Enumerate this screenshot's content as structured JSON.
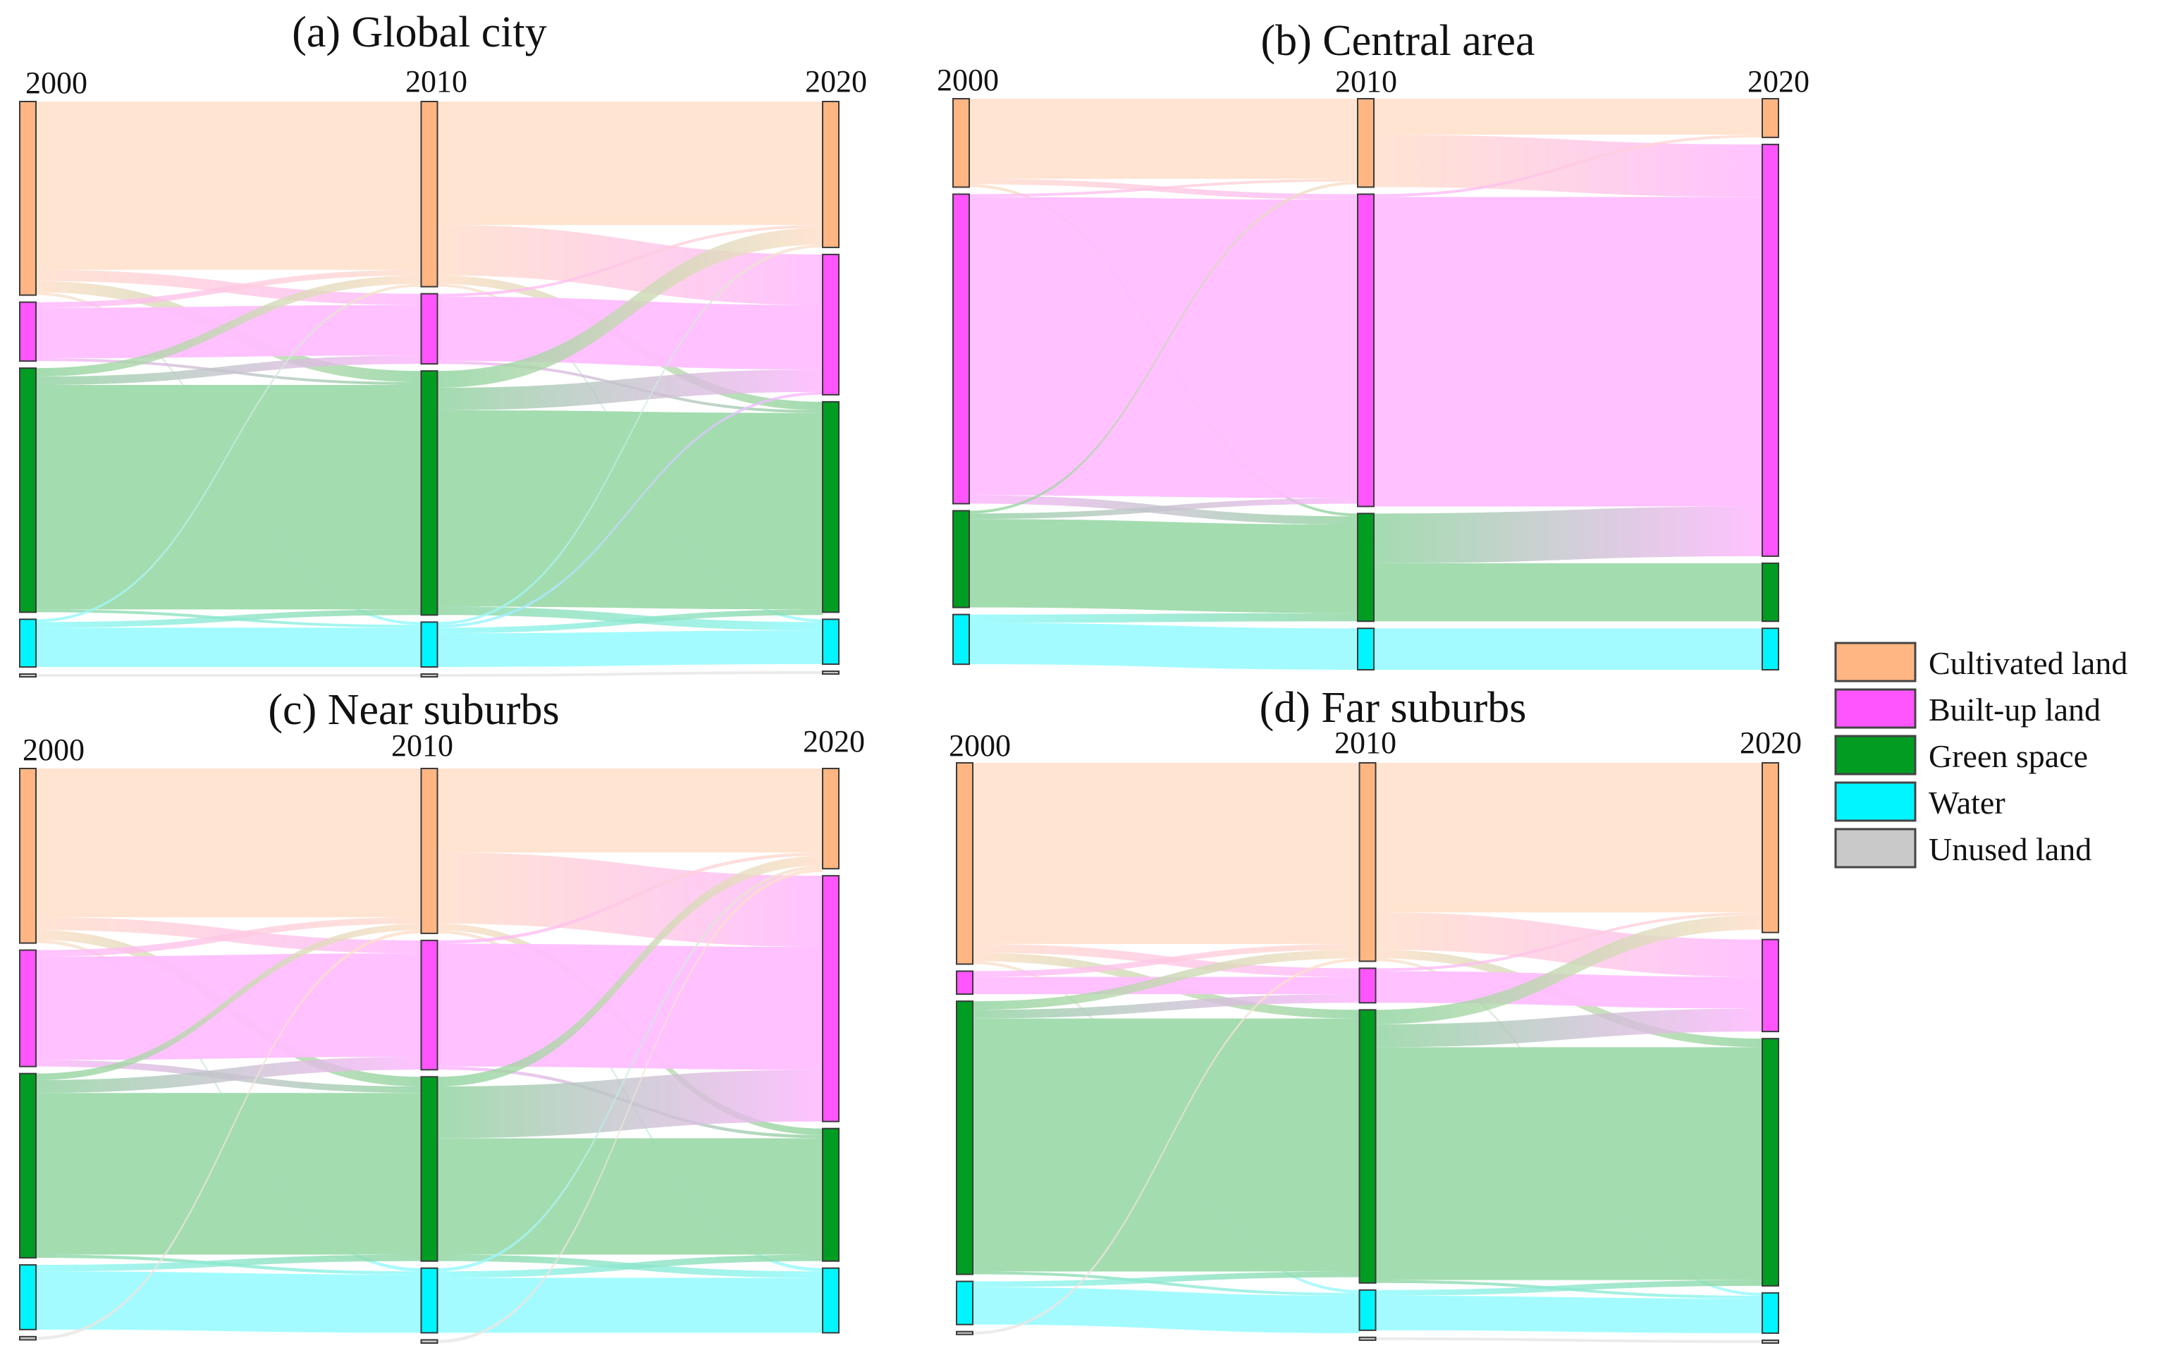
{
  "colors": {
    "Cultivated land": "#ffb682",
    "Built-up land": "#ff55ff",
    "Green space": "#009d22",
    "Water": "#00f5ff",
    "Unused land": "#c9c9c9"
  },
  "legend": {
    "items": [
      {
        "label": "Cultivated land",
        "icon": "swatch"
      },
      {
        "label": "Built-up land",
        "icon": "swatch"
      },
      {
        "label": "Green space",
        "icon": "swatch"
      },
      {
        "label": "Water",
        "icon": "swatch"
      },
      {
        "label": "Unused land",
        "icon": "swatch"
      }
    ]
  },
  "chart_data": [
    {
      "type": "sankey",
      "title": "(a) Global city",
      "years": [
        "2000",
        "2010",
        "2020"
      ],
      "nodes": {
        "2000": {
          "Cultivated land": 34.5,
          "Built-up land": 10.5,
          "Green space": 43.5,
          "Water": 8.5,
          "Unused land": 0.5
        },
        "2010": {
          "Cultivated land": 33.0,
          "Built-up land": 12.5,
          "Green space": 43.5,
          "Water": 8.0,
          "Unused land": 0.5
        },
        "2020": {
          "Cultivated land": 26.0,
          "Built-up land": 25.0,
          "Green space": 37.5,
          "Water": 8.0,
          "Unused land": 0.5
        }
      },
      "flows": [
        {
          "period": 0,
          "from": "Cultivated land",
          "to": "Cultivated land",
          "value": 30.0
        },
        {
          "period": 0,
          "from": "Cultivated land",
          "to": "Built-up land",
          "value": 2.0
        },
        {
          "period": 0,
          "from": "Cultivated land",
          "to": "Green space",
          "value": 2.0
        },
        {
          "period": 0,
          "from": "Cultivated land",
          "to": "Water",
          "value": 0.5
        },
        {
          "period": 0,
          "from": "Built-up land",
          "to": "Built-up land",
          "value": 9.0
        },
        {
          "period": 0,
          "from": "Built-up land",
          "to": "Cultivated land",
          "value": 1.0
        },
        {
          "period": 0,
          "from": "Built-up land",
          "to": "Green space",
          "value": 0.5
        },
        {
          "period": 0,
          "from": "Green space",
          "to": "Green space",
          "value": 40.0
        },
        {
          "period": 0,
          "from": "Green space",
          "to": "Cultivated land",
          "value": 1.5
        },
        {
          "period": 0,
          "from": "Green space",
          "to": "Built-up land",
          "value": 1.5
        },
        {
          "period": 0,
          "from": "Green space",
          "to": "Water",
          "value": 0.5
        },
        {
          "period": 0,
          "from": "Water",
          "to": "Water",
          "value": 7.0
        },
        {
          "period": 0,
          "from": "Water",
          "to": "Green space",
          "value": 1.0
        },
        {
          "period": 0,
          "from": "Water",
          "to": "Cultivated land",
          "value": 0.5
        },
        {
          "period": 0,
          "from": "Unused land",
          "to": "Unused land",
          "value": 0.5
        },
        {
          "period": 1,
          "from": "Cultivated land",
          "to": "Cultivated land",
          "value": 22.0
        },
        {
          "period": 1,
          "from": "Cultivated land",
          "to": "Built-up land",
          "value": 9.0
        },
        {
          "period": 1,
          "from": "Cultivated land",
          "to": "Green space",
          "value": 1.5
        },
        {
          "period": 1,
          "from": "Cultivated land",
          "to": "Water",
          "value": 0.5
        },
        {
          "period": 1,
          "from": "Built-up land",
          "to": "Built-up land",
          "value": 11.5
        },
        {
          "period": 1,
          "from": "Built-up land",
          "to": "Cultivated land",
          "value": 0.5
        },
        {
          "period": 1,
          "from": "Built-up land",
          "to": "Green space",
          "value": 0.5
        },
        {
          "period": 1,
          "from": "Green space",
          "to": "Green space",
          "value": 35.0
        },
        {
          "period": 1,
          "from": "Green space",
          "to": "Built-up land",
          "value": 4.0
        },
        {
          "period": 1,
          "from": "Green space",
          "to": "Cultivated land",
          "value": 3.0
        },
        {
          "period": 1,
          "from": "Green space",
          "to": "Water",
          "value": 1.5
        },
        {
          "period": 1,
          "from": "Water",
          "to": "Water",
          "value": 6.0
        },
        {
          "period": 1,
          "from": "Water",
          "to": "Green space",
          "value": 1.0
        },
        {
          "period": 1,
          "from": "Water",
          "to": "Built-up land",
          "value": 0.5
        },
        {
          "period": 1,
          "from": "Water",
          "to": "Cultivated land",
          "value": 0.5
        },
        {
          "period": 1,
          "from": "Unused land",
          "to": "Unused land",
          "value": 0.5
        }
      ]
    },
    {
      "type": "sankey",
      "title": "(b) Central area",
      "years": [
        "2000",
        "2010",
        "2020"
      ],
      "nodes": {
        "2000": {
          "Cultivated land": 16.0,
          "Built-up land": 56.0,
          "Green space": 17.5,
          "Water": 9.0
        },
        "2010": {
          "Cultivated land": 16.0,
          "Built-up land": 56.5,
          "Green space": 19.5,
          "Water": 7.5
        },
        "2020": {
          "Cultivated land": 7.0,
          "Built-up land": 74.5,
          "Green space": 10.5,
          "Water": 7.5
        }
      },
      "flows": [
        {
          "period": 0,
          "from": "Cultivated land",
          "to": "Cultivated land",
          "value": 14.5
        },
        {
          "period": 0,
          "from": "Cultivated land",
          "to": "Built-up land",
          "value": 1.0
        },
        {
          "period": 0,
          "from": "Cultivated land",
          "to": "Green space",
          "value": 0.5
        },
        {
          "period": 0,
          "from": "Built-up land",
          "to": "Built-up land",
          "value": 54.0
        },
        {
          "period": 0,
          "from": "Built-up land",
          "to": "Green space",
          "value": 1.5
        },
        {
          "period": 0,
          "from": "Built-up land",
          "to": "Cultivated land",
          "value": 0.5
        },
        {
          "period": 0,
          "from": "Green space",
          "to": "Green space",
          "value": 16.0
        },
        {
          "period": 0,
          "from": "Green space",
          "to": "Built-up land",
          "value": 1.0
        },
        {
          "period": 0,
          "from": "Green space",
          "to": "Cultivated land",
          "value": 0.5
        },
        {
          "period": 0,
          "from": "Water",
          "to": "Water",
          "value": 7.5
        },
        {
          "period": 0,
          "from": "Water",
          "to": "Green space",
          "value": 1.5
        },
        {
          "period": 1,
          "from": "Cultivated land",
          "to": "Cultivated land",
          "value": 6.5
        },
        {
          "period": 1,
          "from": "Cultivated land",
          "to": "Built-up land",
          "value": 9.5
        },
        {
          "period": 1,
          "from": "Built-up land",
          "to": "Built-up land",
          "value": 56.0
        },
        {
          "period": 1,
          "from": "Built-up land",
          "to": "Cultivated land",
          "value": 0.5
        },
        {
          "period": 1,
          "from": "Green space",
          "to": "Built-up land",
          "value": 9.0
        },
        {
          "period": 1,
          "from": "Green space",
          "to": "Green space",
          "value": 10.5
        },
        {
          "period": 1,
          "from": "Water",
          "to": "Water",
          "value": 7.5
        }
      ]
    },
    {
      "type": "sankey",
      "title": "(c) Near suburbs",
      "years": [
        "2000",
        "2010",
        "2020"
      ],
      "nodes": {
        "2000": {
          "Cultivated land": 27.0,
          "Built-up land": 18.0,
          "Green space": 28.5,
          "Water": 10.0,
          "Unused land": 0.5
        },
        "2010": {
          "Cultivated land": 25.5,
          "Built-up land": 20.0,
          "Green space": 28.5,
          "Water": 10.0,
          "Unused land": 0.5
        },
        "2020": {
          "Cultivated land": 15.5,
          "Built-up land": 38.0,
          "Green space": 20.5,
          "Water": 10.0
        }
      },
      "flows": [
        {
          "period": 0,
          "from": "Cultivated land",
          "to": "Cultivated land",
          "value": 23.0
        },
        {
          "period": 0,
          "from": "Cultivated land",
          "to": "Built-up land",
          "value": 2.0
        },
        {
          "period": 0,
          "from": "Cultivated land",
          "to": "Green space",
          "value": 1.5
        },
        {
          "period": 0,
          "from": "Cultivated land",
          "to": "Water",
          "value": 0.5
        },
        {
          "period": 0,
          "from": "Built-up land",
          "to": "Built-up land",
          "value": 16.0
        },
        {
          "period": 0,
          "from": "Built-up land",
          "to": "Cultivated land",
          "value": 1.0
        },
        {
          "period": 0,
          "from": "Built-up land",
          "to": "Green space",
          "value": 1.0
        },
        {
          "period": 0,
          "from": "Green space",
          "to": "Green space",
          "value": 25.0
        },
        {
          "period": 0,
          "from": "Green space",
          "to": "Built-up land",
          "value": 2.0
        },
        {
          "period": 0,
          "from": "Green space",
          "to": "Cultivated land",
          "value": 1.0
        },
        {
          "period": 0,
          "from": "Green space",
          "to": "Water",
          "value": 0.5
        },
        {
          "period": 0,
          "from": "Water",
          "to": "Water",
          "value": 9.0
        },
        {
          "period": 0,
          "from": "Water",
          "to": "Green space",
          "value": 1.0
        },
        {
          "period": 0,
          "from": "Unused land",
          "to": "Cultivated land",
          "value": 0.5
        },
        {
          "period": 1,
          "from": "Cultivated land",
          "to": "Cultivated land",
          "value": 13.0
        },
        {
          "period": 1,
          "from": "Cultivated land",
          "to": "Built-up land",
          "value": 11.0
        },
        {
          "period": 1,
          "from": "Cultivated land",
          "to": "Green space",
          "value": 1.0
        },
        {
          "period": 1,
          "from": "Cultivated land",
          "to": "Water",
          "value": 0.5
        },
        {
          "period": 1,
          "from": "Built-up land",
          "to": "Built-up land",
          "value": 19.0
        },
        {
          "period": 1,
          "from": "Built-up land",
          "to": "Cultivated land",
          "value": 0.5
        },
        {
          "period": 1,
          "from": "Built-up land",
          "to": "Green space",
          "value": 0.5
        },
        {
          "period": 1,
          "from": "Green space",
          "to": "Green space",
          "value": 18.0
        },
        {
          "period": 1,
          "from": "Green space",
          "to": "Built-up land",
          "value": 8.0
        },
        {
          "period": 1,
          "from": "Green space",
          "to": "Cultivated land",
          "value": 1.5
        },
        {
          "period": 1,
          "from": "Green space",
          "to": "Water",
          "value": 1.0
        },
        {
          "period": 1,
          "from": "Water",
          "to": "Water",
          "value": 8.5
        },
        {
          "period": 1,
          "from": "Water",
          "to": "Green space",
          "value": 1.0
        },
        {
          "period": 1,
          "from": "Water",
          "to": "Cultivated land",
          "value": 0.5
        },
        {
          "period": 1,
          "from": "Unused land",
          "to": "Cultivated land",
          "value": 0.5
        }
      ]
    },
    {
      "type": "sankey",
      "title": "(d) Far suburbs",
      "years": [
        "2000",
        "2010",
        "2020"
      ],
      "nodes": {
        "2000": {
          "Cultivated land": 35.0,
          "Built-up land": 4.0,
          "Green space": 47.5,
          "Water": 7.5,
          "Unused land": 0.5
        },
        "2010": {
          "Cultivated land": 34.5,
          "Built-up land": 6.0,
          "Green space": 47.5,
          "Water": 7.0,
          "Unused land": 0.5
        },
        "2020": {
          "Cultivated land": 29.5,
          "Built-up land": 16.0,
          "Green space": 43.0,
          "Water": 7.0,
          "Unused land": 0.5
        }
      },
      "flows": [
        {
          "period": 0,
          "from": "Cultivated land",
          "to": "Cultivated land",
          "value": 31.5
        },
        {
          "period": 0,
          "from": "Cultivated land",
          "to": "Built-up land",
          "value": 1.5
        },
        {
          "period": 0,
          "from": "Cultivated land",
          "to": "Green space",
          "value": 1.5
        },
        {
          "period": 0,
          "from": "Cultivated land",
          "to": "Water",
          "value": 0.5
        },
        {
          "period": 0,
          "from": "Built-up land",
          "to": "Built-up land",
          "value": 3.0
        },
        {
          "period": 0,
          "from": "Built-up land",
          "to": "Cultivated land",
          "value": 1.0
        },
        {
          "period": 0,
          "from": "Green space",
          "to": "Green space",
          "value": 44.0
        },
        {
          "period": 0,
          "from": "Green space",
          "to": "Cultivated land",
          "value": 1.5
        },
        {
          "period": 0,
          "from": "Green space",
          "to": "Built-up land",
          "value": 1.5
        },
        {
          "period": 0,
          "from": "Green space",
          "to": "Water",
          "value": 0.5
        },
        {
          "period": 0,
          "from": "Water",
          "to": "Water",
          "value": 6.5
        },
        {
          "period": 0,
          "from": "Water",
          "to": "Green space",
          "value": 1.0
        },
        {
          "period": 0,
          "from": "Unused land",
          "to": "Cultivated land",
          "value": 0.5
        },
        {
          "period": 1,
          "from": "Cultivated land",
          "to": "Cultivated land",
          "value": 26.0
        },
        {
          "period": 1,
          "from": "Cultivated land",
          "to": "Built-up land",
          "value": 6.5
        },
        {
          "period": 1,
          "from": "Cultivated land",
          "to": "Green space",
          "value": 1.5
        },
        {
          "period": 1,
          "from": "Cultivated land",
          "to": "Water",
          "value": 0.5
        },
        {
          "period": 1,
          "from": "Built-up land",
          "to": "Built-up land",
          "value": 5.5
        },
        {
          "period": 1,
          "from": "Built-up land",
          "to": "Cultivated land",
          "value": 0.5
        },
        {
          "period": 1,
          "from": "Green space",
          "to": "Green space",
          "value": 40.5
        },
        {
          "period": 1,
          "from": "Green space",
          "to": "Built-up land",
          "value": 4.0
        },
        {
          "period": 1,
          "from": "Green space",
          "to": "Cultivated land",
          "value": 2.5
        },
        {
          "period": 1,
          "from": "Green space",
          "to": "Water",
          "value": 0.5
        },
        {
          "period": 1,
          "from": "Water",
          "to": "Water",
          "value": 6.0
        },
        {
          "period": 1,
          "from": "Water",
          "to": "Green space",
          "value": 1.0
        },
        {
          "period": 1,
          "from": "Unused land",
          "to": "Unused land",
          "value": 0.5
        }
      ]
    }
  ]
}
